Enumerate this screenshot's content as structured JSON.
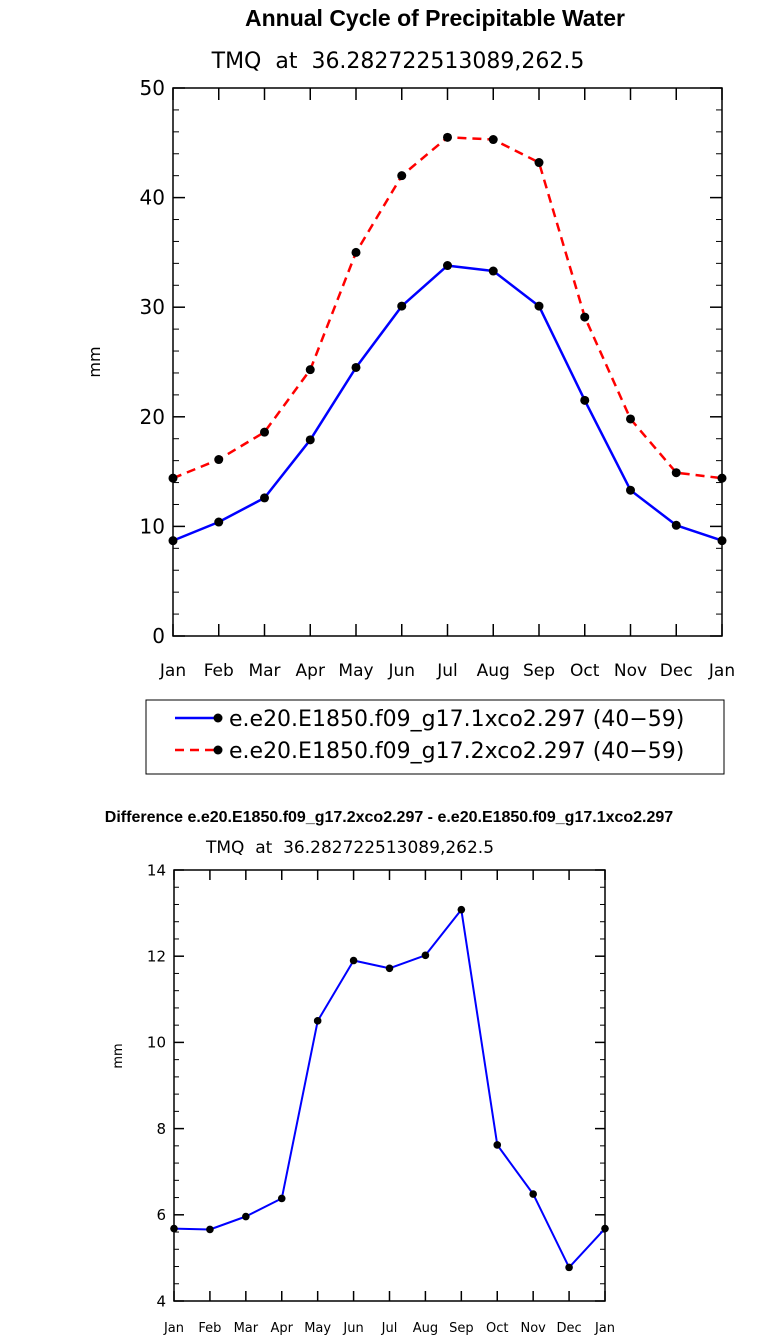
{
  "chart_data": [
    {
      "type": "line",
      "title": "Annual Cycle of Precipitable Water",
      "subtitle": "TMQ  at  36.282722513089,262.5",
      "xlabel": "",
      "ylabel": "mm",
      "categories": [
        "Jan",
        "Feb",
        "Mar",
        "Apr",
        "May",
        "Jun",
        "Jul",
        "Aug",
        "Sep",
        "Oct",
        "Nov",
        "Dec",
        "Jan"
      ],
      "ylim": [
        0,
        50
      ],
      "yticks": [
        0,
        10,
        20,
        30,
        40,
        50
      ],
      "grid": false,
      "legend_position": "bottom",
      "series": [
        {
          "name": "e.e20.E1850.f09_g17.1xco2.297 (40−59)",
          "color": "#0000ff",
          "dash": "solid",
          "values": [
            8.7,
            10.4,
            12.6,
            17.9,
            24.5,
            30.1,
            33.8,
            33.3,
            30.1,
            21.5,
            13.3,
            10.1,
            8.7
          ]
        },
        {
          "name": "e.e20.E1850.f09_g17.2xco2.297 (40−59)",
          "color": "#ff0000",
          "dash": "dashed",
          "values": [
            14.4,
            16.1,
            18.6,
            24.3,
            35.0,
            42.0,
            45.5,
            45.3,
            43.2,
            29.1,
            19.8,
            14.9,
            14.4
          ]
        }
      ]
    },
    {
      "type": "line",
      "title": "Difference e.e20.E1850.f09_g17.2xco2.297 - e.e20.E1850.f09_g17.1xco2.297",
      "subtitle": "TMQ  at  36.282722513089,262.5",
      "xlabel": "",
      "ylabel": "mm",
      "categories": [
        "Jan",
        "Feb",
        "Mar",
        "Apr",
        "May",
        "Jun",
        "Jul",
        "Aug",
        "Sep",
        "Oct",
        "Nov",
        "Dec",
        "Jan"
      ],
      "ylim": [
        4,
        14
      ],
      "yticks": [
        4,
        6,
        8,
        10,
        12,
        14
      ],
      "grid": false,
      "series": [
        {
          "name": "",
          "color": "#0000ff",
          "dash": "solid",
          "values": [
            5.68,
            5.66,
            5.96,
            6.38,
            10.5,
            11.9,
            11.72,
            12.02,
            13.08,
            7.62,
            6.48,
            4.78,
            5.68
          ]
        }
      ]
    }
  ]
}
